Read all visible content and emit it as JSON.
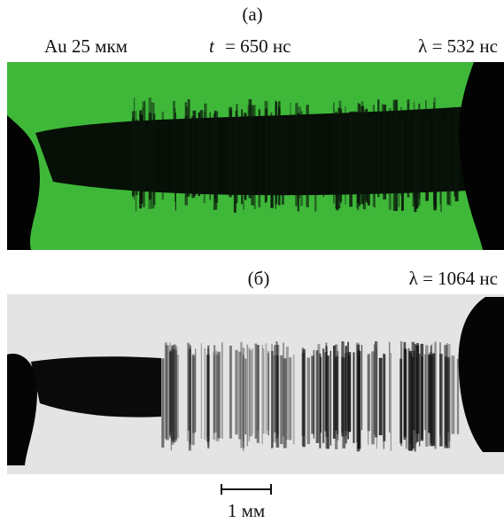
{
  "panel_a": {
    "label": "(а)",
    "target": "Au 25 мкм",
    "time_symbol": "t",
    "time_value": "= 650 нс",
    "wavelength": "λ = 532 нс"
  },
  "panel_b": {
    "label": "(б)",
    "wavelength": "λ = 1064 нс"
  },
  "scale_bar": {
    "label": "1 мм"
  }
}
